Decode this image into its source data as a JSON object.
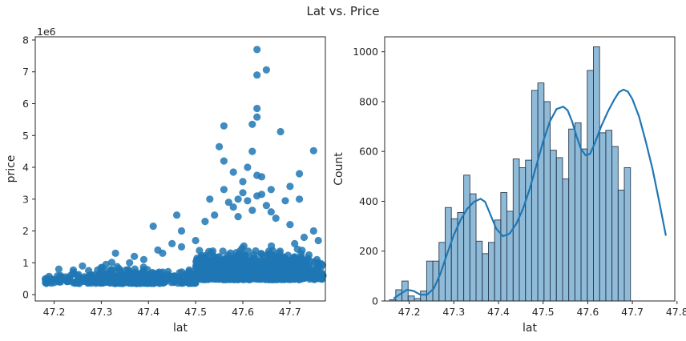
{
  "figure": {
    "title": "Lat vs. Price"
  },
  "chart_data": [
    {
      "type": "scatter",
      "xlabel": "lat",
      "ylabel": "price",
      "offset_label": "1e6",
      "xlim": [
        47.16,
        47.775
      ],
      "ylim": [
        -0.2,
        8.1
      ],
      "x_ticks": [
        47.2,
        47.3,
        47.4,
        47.5,
        47.6,
        47.7
      ],
      "x_tick_labels": [
        "47.2",
        "47.3",
        "47.4",
        "47.5",
        "47.6",
        "47.7"
      ],
      "y_ticks": [
        0,
        1,
        2,
        3,
        4,
        5,
        6,
        7,
        8
      ],
      "y_tick_labels": [
        "0",
        "1",
        "2",
        "3",
        "4",
        "5",
        "6",
        "7",
        "8"
      ],
      "color": "#1f77b4",
      "grid": false,
      "points": [
        [
          47.63,
          7.7
        ],
        [
          47.63,
          6.9
        ],
        [
          47.65,
          7.06
        ],
        [
          47.63,
          5.58
        ],
        [
          47.56,
          5.3
        ],
        [
          47.62,
          5.35
        ],
        [
          47.68,
          5.12
        ],
        [
          47.63,
          5.85
        ],
        [
          47.55,
          4.65
        ],
        [
          47.62,
          4.5
        ],
        [
          47.75,
          4.52
        ],
        [
          47.56,
          4.2
        ],
        [
          47.72,
          3.8
        ],
        [
          47.58,
          3.85
        ],
        [
          47.61,
          4.0
        ],
        [
          47.63,
          3.75
        ],
        [
          47.64,
          3.7
        ],
        [
          47.6,
          3.55
        ],
        [
          47.66,
          3.3
        ],
        [
          47.7,
          3.4
        ],
        [
          47.64,
          3.15
        ],
        [
          47.69,
          2.95
        ],
        [
          47.72,
          3.0
        ],
        [
          47.53,
          3.0
        ],
        [
          47.56,
          3.3
        ],
        [
          47.58,
          2.75
        ],
        [
          47.62,
          2.65
        ],
        [
          47.66,
          2.6
        ],
        [
          47.54,
          2.5
        ],
        [
          47.46,
          2.5
        ],
        [
          47.41,
          2.15
        ],
        [
          47.47,
          2.0
        ],
        [
          47.75,
          2.0
        ],
        [
          47.7,
          2.2
        ],
        [
          47.73,
          1.8
        ],
        [
          47.67,
          2.4
        ],
        [
          47.61,
          2.95
        ],
        [
          47.6,
          3.2
        ],
        [
          47.59,
          3.0
        ],
        [
          47.57,
          2.9
        ],
        [
          47.63,
          3.1
        ],
        [
          47.65,
          2.8
        ],
        [
          47.52,
          2.3
        ],
        [
          47.59,
          2.45
        ],
        [
          47.21,
          0.8
        ],
        [
          47.26,
          0.9
        ],
        [
          47.31,
          0.95
        ],
        [
          47.33,
          1.3
        ],
        [
          47.37,
          1.2
        ],
        [
          47.39,
          1.1
        ],
        [
          47.42,
          1.4
        ],
        [
          47.45,
          1.6
        ],
        [
          47.47,
          1.5
        ],
        [
          47.43,
          1.3
        ],
        [
          47.5,
          1.7
        ],
        [
          47.36,
          1.0
        ],
        [
          47.3,
          0.85
        ],
        [
          47.24,
          0.7
        ],
        [
          47.76,
          1.7
        ],
        [
          47.71,
          1.6
        ]
      ]
    },
    {
      "type": "bar",
      "subtype": "histogram-with-kde",
      "xlabel": "lat",
      "ylabel": "Count",
      "xlim": [
        47.145,
        47.795
      ],
      "ylim": [
        0,
        1060
      ],
      "x_ticks": [
        47.2,
        47.3,
        47.4,
        47.5,
        47.6,
        47.7,
        47.8
      ],
      "x_tick_labels": [
        "47.2",
        "47.3",
        "47.4",
        "47.5",
        "47.6",
        "47.7",
        "47.8"
      ],
      "y_ticks": [
        0,
        200,
        400,
        600,
        800,
        1000
      ],
      "y_tick_labels": [
        "0",
        "200",
        "400",
        "600",
        "800",
        "1000"
      ],
      "color": "#1f77b4",
      "grid": false,
      "bin_start": 47.156,
      "bin_width": 0.01384,
      "counts": [
        5,
        45,
        80,
        20,
        10,
        40,
        160,
        160,
        235,
        375,
        330,
        355,
        505,
        430,
        240,
        190,
        235,
        325,
        435,
        360,
        570,
        535,
        565,
        845,
        875,
        800,
        605,
        575,
        490,
        690,
        715,
        610,
        925,
        1020,
        675,
        685,
        620,
        445,
        535
      ],
      "kde_points": [
        [
          47.165,
          10
        ],
        [
          47.18,
          28
        ],
        [
          47.195,
          45
        ],
        [
          47.21,
          40
        ],
        [
          47.225,
          25
        ],
        [
          47.24,
          25
        ],
        [
          47.255,
          50
        ],
        [
          47.27,
          110
        ],
        [
          47.285,
          190
        ],
        [
          47.3,
          265
        ],
        [
          47.315,
          325
        ],
        [
          47.33,
          370
        ],
        [
          47.345,
          398
        ],
        [
          47.36,
          410
        ],
        [
          47.37,
          398
        ],
        [
          47.38,
          355
        ],
        [
          47.395,
          290
        ],
        [
          47.41,
          260
        ],
        [
          47.425,
          270
        ],
        [
          47.44,
          310
        ],
        [
          47.455,
          370
        ],
        [
          47.47,
          450
        ],
        [
          47.485,
          545
        ],
        [
          47.5,
          640
        ],
        [
          47.515,
          720
        ],
        [
          47.53,
          770
        ],
        [
          47.545,
          780
        ],
        [
          47.555,
          765
        ],
        [
          47.565,
          720
        ],
        [
          47.575,
          660
        ],
        [
          47.585,
          610
        ],
        [
          47.595,
          585
        ],
        [
          47.605,
          590
        ],
        [
          47.615,
          630
        ],
        [
          47.63,
          700
        ],
        [
          47.645,
          760
        ],
        [
          47.66,
          810
        ],
        [
          47.67,
          838
        ],
        [
          47.68,
          848
        ],
        [
          47.69,
          840
        ],
        [
          47.7,
          810
        ],
        [
          47.715,
          740
        ],
        [
          47.73,
          640
        ],
        [
          47.745,
          530
        ],
        [
          47.76,
          400
        ],
        [
          47.775,
          262
        ]
      ]
    }
  ]
}
